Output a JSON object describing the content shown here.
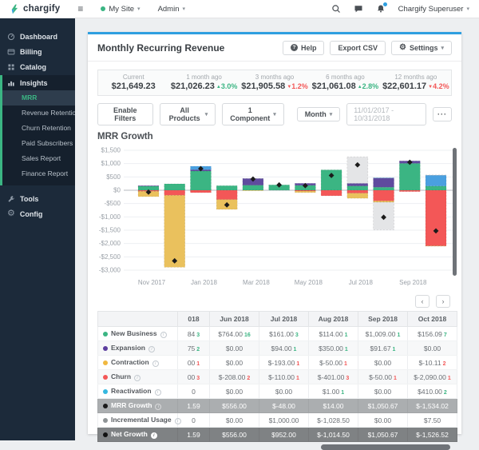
{
  "icons": {
    "caret": "▾",
    "hamburger": "≡",
    "prev": "‹",
    "next": "›",
    "more": "···",
    "gear": "⚙",
    "help": "?",
    "info": "i",
    "up_arrow": "▲",
    "down_arrow": "▼"
  },
  "navbar": {
    "brand": "chargify",
    "my_site": "My Site",
    "admin": "Admin",
    "user": "Chargify Superuser"
  },
  "sidebar": {
    "items": [
      "Dashboard",
      "Billing",
      "Catalog",
      "Insights"
    ],
    "sub": [
      "MRR",
      "Revenue Retention",
      "Churn Retention",
      "Paid Subscribers",
      "Sales Report",
      "Finance Report"
    ],
    "active_sub": "MRR",
    "bottom": [
      "Tools",
      "Config"
    ]
  },
  "header": {
    "title": "Monthly Recurring Revenue",
    "help": "Help",
    "export_csv": "Export CSV",
    "settings": "Settings"
  },
  "stats": {
    "items": [
      {
        "label": "Current",
        "value": "$21,649.23",
        "delta": "",
        "dir": ""
      },
      {
        "label": "1 month ago",
        "value": "$21,026.23",
        "delta": "3.0%",
        "dir": "up"
      },
      {
        "label": "3 months ago",
        "value": "$21,905.58",
        "delta": "1.2%",
        "dir": "down"
      },
      {
        "label": "6 months ago",
        "value": "$21,061.08",
        "delta": "2.8%",
        "dir": "up"
      },
      {
        "label": "12 months ago",
        "value": "$22,601.17",
        "delta": "4.2%",
        "dir": "down"
      }
    ]
  },
  "filters": {
    "enable": "Enable Filters",
    "products": "All Products",
    "component": "1 Component",
    "interval": "Month",
    "date_range": "11/01/2017   -   10/31/2018"
  },
  "chart": {
    "title": "MRR Growth"
  },
  "chart_data": {
    "type": "bar",
    "subtype": "stacked",
    "title": "MRR Growth",
    "x": [
      "Nov 2017",
      "Dec 2017",
      "Jan 2018",
      "Feb 2018",
      "Mar 2018",
      "Apr 2018",
      "May 2018",
      "Jun 2018",
      "Jul 2018",
      "Aug 2018",
      "Sep 2018",
      "Oct 2018"
    ],
    "x_tick_labels": [
      "Nov 2017",
      "Jan 2018",
      "Mar 2018",
      "May 2018",
      "Jul 2018",
      "Sep 2018"
    ],
    "ylim": [
      -3000,
      1500
    ],
    "grid": true,
    "legend_position": "none",
    "y_ticks": [
      {
        "v": 1500,
        "label": "$1,500"
      },
      {
        "v": 1000,
        "label": "$1,000"
      },
      {
        "v": 500,
        "label": "$500"
      },
      {
        "v": 0,
        "label": "$0"
      },
      {
        "v": -500,
        "label": "-$500"
      },
      {
        "v": -1000,
        "label": "-$1,000"
      },
      {
        "v": -1500,
        "label": "-$1,500"
      },
      {
        "v": -2000,
        "label": "-$2,000"
      },
      {
        "v": -2500,
        "label": "-$2,500"
      },
      {
        "v": -3000,
        "label": "-$3,000"
      }
    ],
    "series": [
      {
        "name": "New Business",
        "color": "#3bb583",
        "values": [
          150,
          240,
          720,
          170,
          190,
          200,
          184,
          764,
          161,
          114,
          1009,
          156.09
        ]
      },
      {
        "name": "Expansion",
        "color": "#5f4b9e",
        "values": [
          20,
          0,
          50,
          0,
          250,
          0,
          75,
          0,
          94,
          350,
          91.67,
          0
        ]
      },
      {
        "name": "Reactivation",
        "color": "#4aa0e0",
        "values": [
          0,
          0,
          130,
          0,
          0,
          0,
          0,
          0,
          0,
          1,
          0,
          410
        ]
      },
      {
        "name": "Incremental Usage",
        "color": "#e4e5e7",
        "values": [
          0,
          0,
          0,
          0,
          0,
          0,
          0,
          0,
          1000,
          -1028.5,
          0,
          7.5
        ]
      },
      {
        "name": "Churn",
        "color": "#f35757",
        "values": [
          -40,
          -190,
          -90,
          -350,
          0,
          0,
          -30,
          -208,
          -110,
          -401,
          -50,
          -2090
        ]
      },
      {
        "name": "Contraction",
        "color": "#eac15d",
        "values": [
          -200,
          -2700,
          0,
          -370,
          -20,
          0,
          -57,
          0,
          -193,
          -50,
          0,
          -10.11
        ]
      }
    ],
    "marker_series": {
      "name": "Net Growth",
      "shape": "diamond",
      "color": "#1b1b1b",
      "values": [
        -70,
        -2650,
        810,
        -550,
        420,
        200,
        172,
        556,
        952,
        -1014.5,
        1050.67,
        -1526.52
      ]
    }
  },
  "table": {
    "columns": [
      "",
      "018",
      "Jun 2018",
      "Jul 2018",
      "Aug 2018",
      "Sep 2018",
      "Oct 2018"
    ],
    "rows": [
      {
        "label": "New Business",
        "dot": "#3bb583",
        "style": "normal",
        "cells": [
          {
            "v": "84",
            "n": "3",
            "t": "pos"
          },
          {
            "v": "$764.00",
            "n": "16",
            "t": "pos"
          },
          {
            "v": "$161.00",
            "n": "3",
            "t": "pos"
          },
          {
            "v": "$114.00",
            "n": "1",
            "t": "pos"
          },
          {
            "v": "$1,009.00",
            "n": "1",
            "t": "pos"
          },
          {
            "v": "$156.09",
            "n": "7",
            "t": "pos"
          }
        ]
      },
      {
        "label": "Expansion",
        "dot": "#5b3d9e",
        "style": "normal",
        "cells": [
          {
            "v": "75",
            "n": "2",
            "t": "pos"
          },
          {
            "v": "$0.00"
          },
          {
            "v": "$94.00",
            "n": "1",
            "t": "pos"
          },
          {
            "v": "$350.00",
            "n": "1",
            "t": "pos"
          },
          {
            "v": "$91.67",
            "n": "1",
            "t": "pos"
          },
          {
            "v": "$0.00"
          }
        ]
      },
      {
        "label": "Contraction",
        "dot": "#f0b840",
        "style": "normal",
        "cells": [
          {
            "v": "00",
            "n": "1",
            "t": "neg"
          },
          {
            "v": "$0.00"
          },
          {
            "v": "$-193.00",
            "n": "1",
            "t": "neg"
          },
          {
            "v": "$-50.00",
            "n": "1",
            "t": "neg"
          },
          {
            "v": "$0.00"
          },
          {
            "v": "$-10.11",
            "n": "2",
            "t": "neg"
          }
        ]
      },
      {
        "label": "Churn",
        "dot": "#f35757",
        "style": "normal",
        "cells": [
          {
            "v": "00",
            "n": "3",
            "t": "neg"
          },
          {
            "v": "$-208.00",
            "n": "2",
            "t": "neg"
          },
          {
            "v": "$-110.00",
            "n": "1",
            "t": "neg"
          },
          {
            "v": "$-401.00",
            "n": "3",
            "t": "neg"
          },
          {
            "v": "$-50.00",
            "n": "1",
            "t": "neg"
          },
          {
            "v": "$-2,090.00",
            "n": "1",
            "t": "neg"
          }
        ]
      },
      {
        "label": "Reactivation",
        "dot": "#35b8e0",
        "style": "normal",
        "cells": [
          {
            "v": "0"
          },
          {
            "v": "$0.00"
          },
          {
            "v": "$0.00"
          },
          {
            "v": "$1.00",
            "n": "1",
            "t": "pos"
          },
          {
            "v": "$0.00"
          },
          {
            "v": "$410.00",
            "n": "2",
            "t": "pos"
          }
        ]
      },
      {
        "label": "MRR Growth",
        "dot": "#1a1a1a",
        "style": "mrr",
        "cells": [
          {
            "v": "1.59"
          },
          {
            "v": "$556.00"
          },
          {
            "v": "$-48.00"
          },
          {
            "v": "$14.00"
          },
          {
            "v": "$1,050.67"
          },
          {
            "v": "$-1,534.02"
          }
        ]
      },
      {
        "label": "Incremental Usage",
        "dot": "#8f9496",
        "style": "normal",
        "cells": [
          {
            "v": "0"
          },
          {
            "v": "$0.00"
          },
          {
            "v": "$1,000.00"
          },
          {
            "v": "$-1,028.50"
          },
          {
            "v": "$0.00"
          },
          {
            "v": "$7.50"
          }
        ]
      },
      {
        "label": "Net Growth",
        "dot": "#111111",
        "style": "net",
        "cells": [
          {
            "v": "1.59"
          },
          {
            "v": "$556.00"
          },
          {
            "v": "$952.00"
          },
          {
            "v": "$-1,014.50"
          },
          {
            "v": "$1,050.67"
          },
          {
            "v": "$-1,526.52"
          }
        ]
      }
    ]
  },
  "colors": {
    "accent_blue": "#2e9fe0",
    "green": "#3bb583",
    "red": "#f35757",
    "sidebar_bg": "#1c2a3a"
  }
}
